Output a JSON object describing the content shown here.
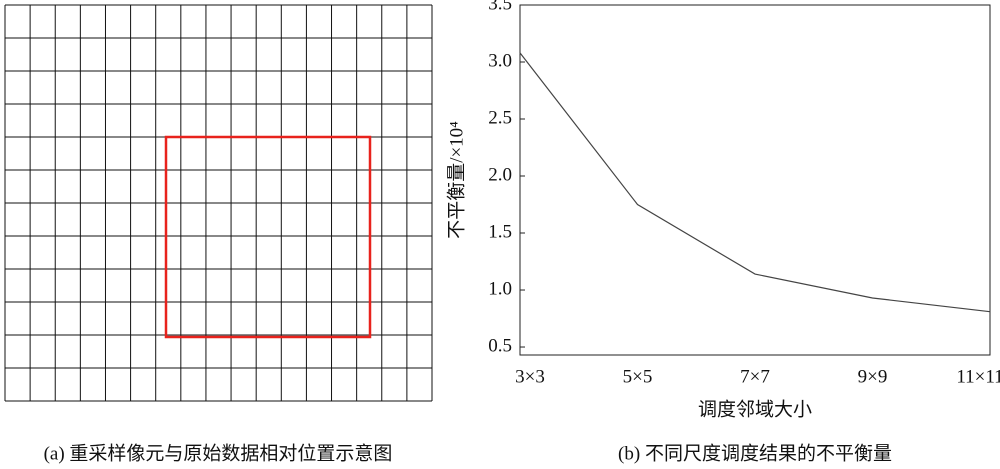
{
  "panel_a": {
    "caption": "(a) 重采样像元与原始数据相对位置示意图"
  },
  "chart_data": {
    "type": "line",
    "caption": "(b) 不同尺度调度结果的不平衡量",
    "x_label": "调度邻域大小",
    "y_label": "不平衡量/×10⁴",
    "categories": [
      "3×3",
      "5×5",
      "7×7",
      "9×9",
      "11×11"
    ],
    "series": [
      {
        "color": "#444444",
        "values": [
          3.08,
          1.75,
          1.14,
          0.93,
          0.81
        ]
      }
    ],
    "ylim": [
      0.43,
      3.5
    ],
    "yticks": [
      0.5,
      {
        "value": 1,
        "label": "1.0"
      },
      1.5,
      {
        "value": 2,
        "label": "2.0"
      },
      2.5,
      {
        "value": 3,
        "label": "3.0"
      },
      3.5
    ]
  }
}
